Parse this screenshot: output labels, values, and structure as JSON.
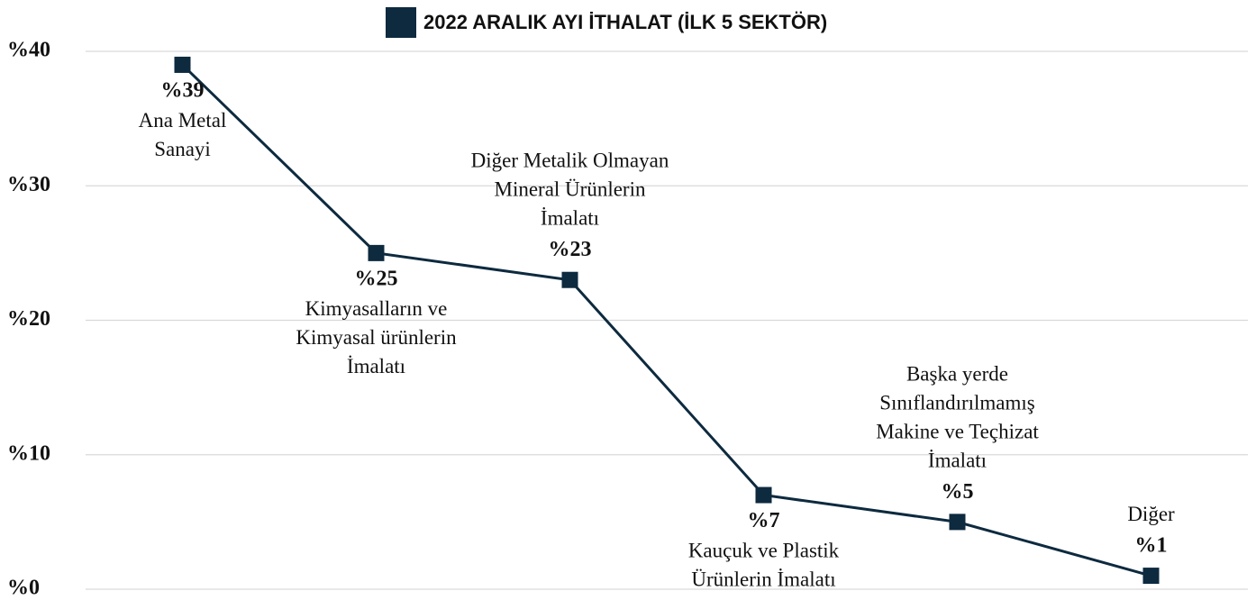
{
  "chart_data": {
    "type": "line",
    "categories": [
      "Ana Metal\nSanayi",
      "Kimyasalların ve\nKimyasal ürünlerin\nİmalatı",
      "Diğer Metalik Olmayan\nMineral Ürünlerin\nİmalatı",
      "Kauçuk ve Plastik\nÜrünlerin İmalatı",
      "Başka yerde\nSınıflandırılmamış\nMakine ve Teçhizat\nİmalatı",
      "Diğer"
    ],
    "series": [
      {
        "name": "2022 ARALIK AYI İTHALAT (İLK 5 SEKTÖR)",
        "color": "#0d2a3f",
        "values": [
          39,
          25,
          23,
          7,
          5,
          1
        ],
        "value_labels": [
          "%39",
          "%25",
          "%23",
          "%7",
          "%5",
          "%1"
        ]
      }
    ],
    "ylim": [
      0,
      40
    ],
    "yticks": [
      {
        "value": 0,
        "label": "%0"
      },
      {
        "value": 10,
        "label": "%10"
      },
      {
        "value": 20,
        "label": "%20"
      },
      {
        "value": 30,
        "label": "%30"
      },
      {
        "value": 40,
        "label": "%40"
      }
    ],
    "grid": true,
    "legend": "top"
  }
}
